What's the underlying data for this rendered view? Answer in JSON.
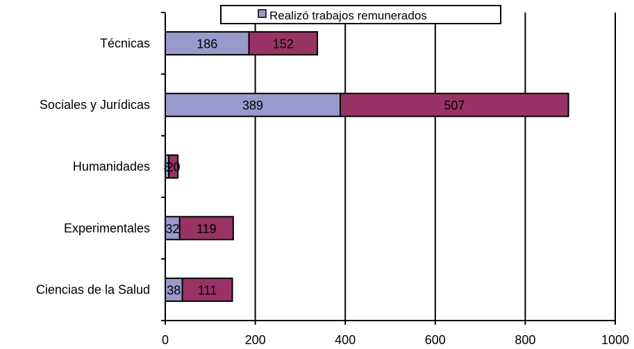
{
  "chart_data": {
    "type": "bar",
    "orientation": "horizontal",
    "stacked": true,
    "categories": [
      "Técnicas",
      "Sociales y Jurídicas",
      "Humanidades",
      "Experimentales",
      "Ciencias de la Salud"
    ],
    "series": [
      {
        "name": "Realizó trabajos remunerados",
        "color": "#9999cc",
        "values": [
          186,
          389,
          8,
          32,
          38
        ],
        "labels": [
          "186",
          "389",
          "8",
          "32",
          "38"
        ]
      },
      {
        "color": "#993366",
        "values": [
          152,
          507,
          20,
          119,
          111
        ],
        "labels": [
          "152",
          "507",
          "20",
          "119",
          "111"
        ]
      }
    ],
    "xlim": [
      0,
      1000
    ],
    "xticks": [
      "0",
      "200",
      "400",
      "600",
      "800",
      "1000"
    ],
    "grid": "vertical major",
    "legend": "top"
  }
}
